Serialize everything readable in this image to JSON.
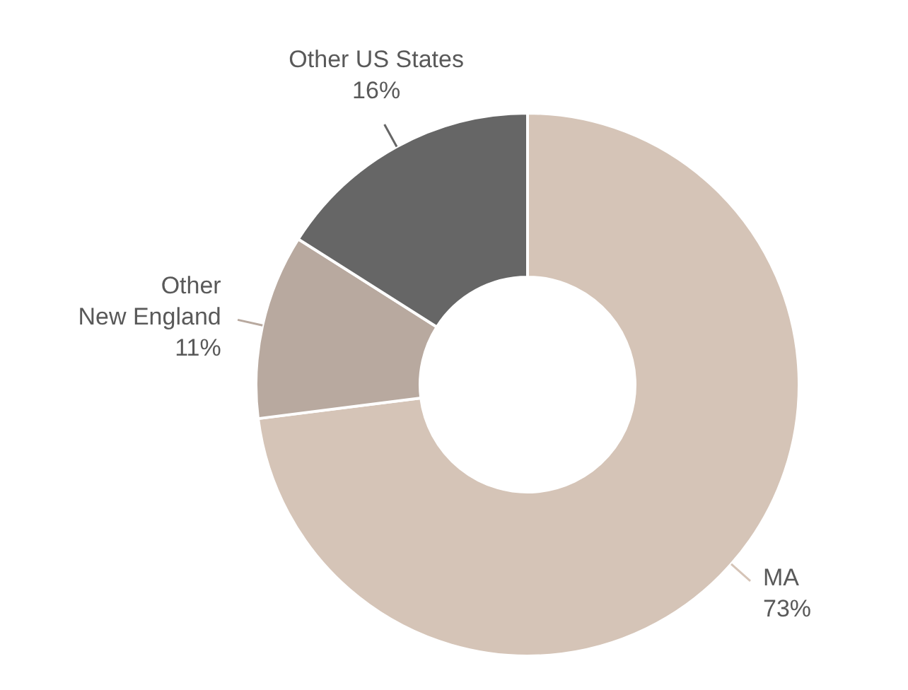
{
  "chart_data": {
    "type": "donut",
    "categories": [
      "MA",
      "Other New England",
      "Other US States"
    ],
    "values": [
      73,
      11,
      16
    ],
    "colors": [
      "#d5c4b7",
      "#b8a99f",
      "#666666"
    ],
    "value_labels": [
      "73%",
      "11%",
      "16%"
    ]
  }
}
